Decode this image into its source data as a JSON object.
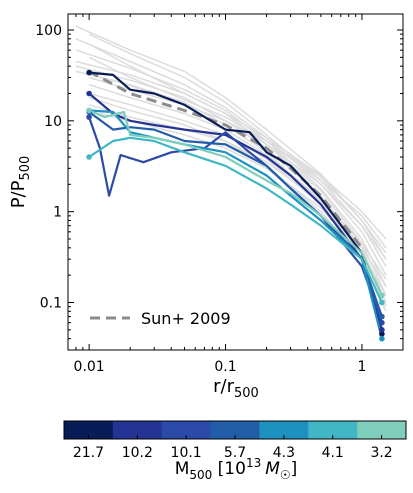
{
  "chart_data": {
    "type": "line",
    "xscale": "log",
    "yscale": "log",
    "xlim": [
      0.007,
      2.0
    ],
    "ylim": [
      0.03,
      150
    ],
    "xlabel": {
      "main": "r/r",
      "sub": "500"
    },
    "ylabel": {
      "main": "P/P",
      "sub": "500"
    },
    "x_ticks": [
      0.01,
      0.1,
      1
    ],
    "x_tick_labels": [
      "0.01",
      "0.1",
      "1"
    ],
    "y_ticks": [
      0.1,
      1,
      10,
      100
    ],
    "y_tick_labels": [
      "0.1",
      "1",
      "10",
      "100"
    ],
    "legend": {
      "label": "Sun+ 2009",
      "placement": "bottom-left",
      "style": "dashed",
      "color": "#8c8c8c"
    },
    "reference_curve": {
      "name": "Sun+ 2009",
      "x": [
        0.01,
        0.02,
        0.05,
        0.1,
        0.2,
        0.3,
        0.5,
        1.0
      ],
      "y": [
        35,
        20,
        13,
        9,
        5,
        3,
        1.5,
        0.4
      ]
    },
    "background_curves_color": "#dcdcdc",
    "background_curves": [
      {
        "x": [
          0.008,
          0.02,
          0.05,
          0.1,
          0.2,
          0.5,
          1.0,
          1.5
        ],
        "y": [
          110,
          60,
          35,
          18,
          8,
          2.6,
          0.8,
          0.3
        ]
      },
      {
        "x": [
          0.008,
          0.02,
          0.05,
          0.1,
          0.2,
          0.5,
          1.0,
          1.5
        ],
        "y": [
          80,
          45,
          25,
          14,
          6.5,
          2.0,
          0.6,
          0.2
        ]
      },
      {
        "x": [
          0.008,
          0.02,
          0.05,
          0.1,
          0.2,
          0.5,
          1.0,
          1.5
        ],
        "y": [
          60,
          38,
          22,
          13,
          6.0,
          1.8,
          0.5,
          0.15
        ]
      },
      {
        "x": [
          0.008,
          0.02,
          0.05,
          0.1,
          0.2,
          0.5,
          1.0,
          1.5
        ],
        "y": [
          45,
          32,
          20,
          12,
          5.5,
          1.7,
          0.45,
          0.12
        ]
      },
      {
        "x": [
          0.008,
          0.02,
          0.05,
          0.1,
          0.2,
          0.5,
          1.0,
          1.5
        ],
        "y": [
          40,
          28,
          18,
          10,
          5.0,
          1.5,
          0.4,
          0.1
        ]
      },
      {
        "x": [
          0.008,
          0.02,
          0.05,
          0.1,
          0.2,
          0.5,
          1.0,
          1.5
        ],
        "y": [
          35,
          25,
          16,
          9,
          4.5,
          1.3,
          0.35,
          0.09
        ]
      },
      {
        "x": [
          0.01,
          0.02,
          0.05,
          0.1,
          0.2,
          0.5,
          1.0,
          1.5
        ],
        "y": [
          30,
          22,
          15,
          10,
          5.5,
          2.0,
          0.7,
          0.3
        ]
      },
      {
        "x": [
          0.01,
          0.02,
          0.05,
          0.1,
          0.2,
          0.5,
          1.0,
          1.5
        ],
        "y": [
          25,
          18,
          12,
          8,
          4.2,
          1.4,
          0.45,
          0.18
        ]
      },
      {
        "x": [
          0.01,
          0.02,
          0.05,
          0.1,
          0.2,
          0.5,
          1.0,
          1.5
        ],
        "y": [
          20,
          15,
          10,
          7,
          3.8,
          1.2,
          0.35,
          0.12
        ]
      },
      {
        "x": [
          0.01,
          0.02,
          0.05,
          0.1,
          0.2,
          0.5,
          1.0,
          1.5
        ],
        "y": [
          18,
          13,
          9,
          6,
          3.2,
          1.0,
          0.3,
          0.08
        ]
      },
      {
        "x": [
          0.01,
          0.02,
          0.05,
          0.1,
          0.2,
          0.5,
          1.0,
          1.5
        ],
        "y": [
          50,
          30,
          17,
          11,
          6.0,
          2.2,
          0.9,
          0.4
        ]
      },
      {
        "x": [
          0.01,
          0.02,
          0.05,
          0.1,
          0.2,
          0.5,
          1.0,
          1.5
        ],
        "y": [
          70,
          40,
          20,
          12,
          6.5,
          2.5,
          1.0,
          0.5
        ]
      },
      {
        "x": [
          0.015,
          0.03,
          0.05,
          0.1,
          0.2,
          0.5,
          1.0,
          1.5
        ],
        "y": [
          28,
          20,
          15,
          10,
          6.0,
          2.4,
          0.8,
          0.35
        ]
      },
      {
        "x": [
          0.01,
          0.02,
          0.05,
          0.1,
          0.2,
          0.5,
          1.0,
          1.5
        ],
        "y": [
          15,
          11,
          8,
          6,
          3.5,
          1.3,
          0.4,
          0.15
        ]
      },
      {
        "x": [
          0.012,
          0.02,
          0.05,
          0.1,
          0.2,
          0.5,
          1.0,
          1.5
        ],
        "y": [
          12,
          10,
          7,
          5,
          3.0,
          1.1,
          0.35,
          0.12
        ]
      },
      {
        "x": [
          0.01,
          0.02,
          0.05,
          0.1,
          0.2,
          0.5,
          1.0,
          1.5
        ],
        "y": [
          90,
          55,
          30,
          16,
          7.0,
          2.2,
          0.7,
          0.25
        ]
      }
    ],
    "series": [
      {
        "mass": "21.7",
        "color": "#081d58",
        "x": [
          0.01,
          0.015,
          0.02,
          0.03,
          0.05,
          0.1,
          0.15,
          0.2,
          0.3,
          0.5,
          1.0,
          1.4
        ],
        "y": [
          34,
          32,
          22,
          20,
          15,
          8,
          7.5,
          4.5,
          3.2,
          1.4,
          0.35,
          0.045
        ]
      },
      {
        "mass": "10.2",
        "color": "#253494",
        "x": [
          0.01,
          0.015,
          0.02,
          0.03,
          0.05,
          0.1,
          0.2,
          0.3,
          0.5,
          1.0,
          1.4
        ],
        "y": [
          20,
          12,
          10,
          9,
          8,
          7,
          4,
          2.5,
          1.2,
          0.3,
          0.05
        ]
      },
      {
        "mass": "10.1",
        "color": "#2c4aa8",
        "x": [
          0.01,
          0.012,
          0.014,
          0.017,
          0.025,
          0.04,
          0.07,
          0.1,
          0.15,
          0.2,
          0.3,
          0.5,
          1.0,
          1.4
        ],
        "y": [
          11,
          5,
          1.5,
          4.2,
          3.5,
          4.5,
          5,
          7.5,
          4.5,
          3.2,
          1.8,
          0.9,
          0.25,
          0.06
        ]
      },
      {
        "mass": "5.7",
        "color": "#225ea8",
        "x": [
          0.01,
          0.015,
          0.02,
          0.03,
          0.05,
          0.1,
          0.2,
          0.3,
          0.5,
          1.0,
          1.4
        ],
        "y": [
          12.5,
          8,
          8.5,
          8,
          6,
          5.5,
          3.2,
          1.8,
          0.9,
          0.3,
          0.07
        ]
      },
      {
        "mass": "4.3",
        "color": "#1d91c0",
        "x": [
          0.01,
          0.015,
          0.02,
          0.03,
          0.05,
          0.1,
          0.2,
          0.3,
          0.5,
          1.0,
          1.4
        ],
        "y": [
          13,
          12.5,
          7.5,
          6.5,
          5.5,
          4.5,
          2.5,
          1.5,
          0.8,
          0.3,
          0.04
        ]
      },
      {
        "mass": "4.1",
        "color": "#41b6c4",
        "x": [
          0.01,
          0.015,
          0.02,
          0.03,
          0.05,
          0.1,
          0.2,
          0.3,
          0.5,
          1.0,
          1.4
        ],
        "y": [
          4,
          6,
          6.5,
          6,
          4.5,
          3.2,
          1.8,
          1.2,
          0.7,
          0.3,
          0.1
        ]
      },
      {
        "mass": "3.2",
        "color": "#7fcdbb",
        "x": [
          0.01,
          0.013,
          0.018,
          0.02,
          0.03,
          0.05,
          0.1,
          0.2,
          0.3,
          0.5,
          1.0,
          1.4
        ],
        "y": [
          13,
          11,
          12.5,
          7,
          6.5,
          5.5,
          4,
          2.2,
          1.6,
          0.9,
          0.35,
          0.12
        ]
      }
    ],
    "colorbar": {
      "label": {
        "main": "M",
        "sub": "500",
        "bracket_open": " [10",
        "sup": "13",
        "unit": "M",
        "unit_sub": "☉",
        "bracket_close": "]"
      },
      "colors": [
        "#081d58",
        "#253494",
        "#2c4aa8",
        "#225ea8",
        "#1d91c0",
        "#41b6c4",
        "#7fcdbb"
      ],
      "tick_labels": [
        "21.7",
        "10.2",
        "10.1",
        "5.7",
        "4.3",
        "4.1",
        "3.2"
      ]
    }
  }
}
